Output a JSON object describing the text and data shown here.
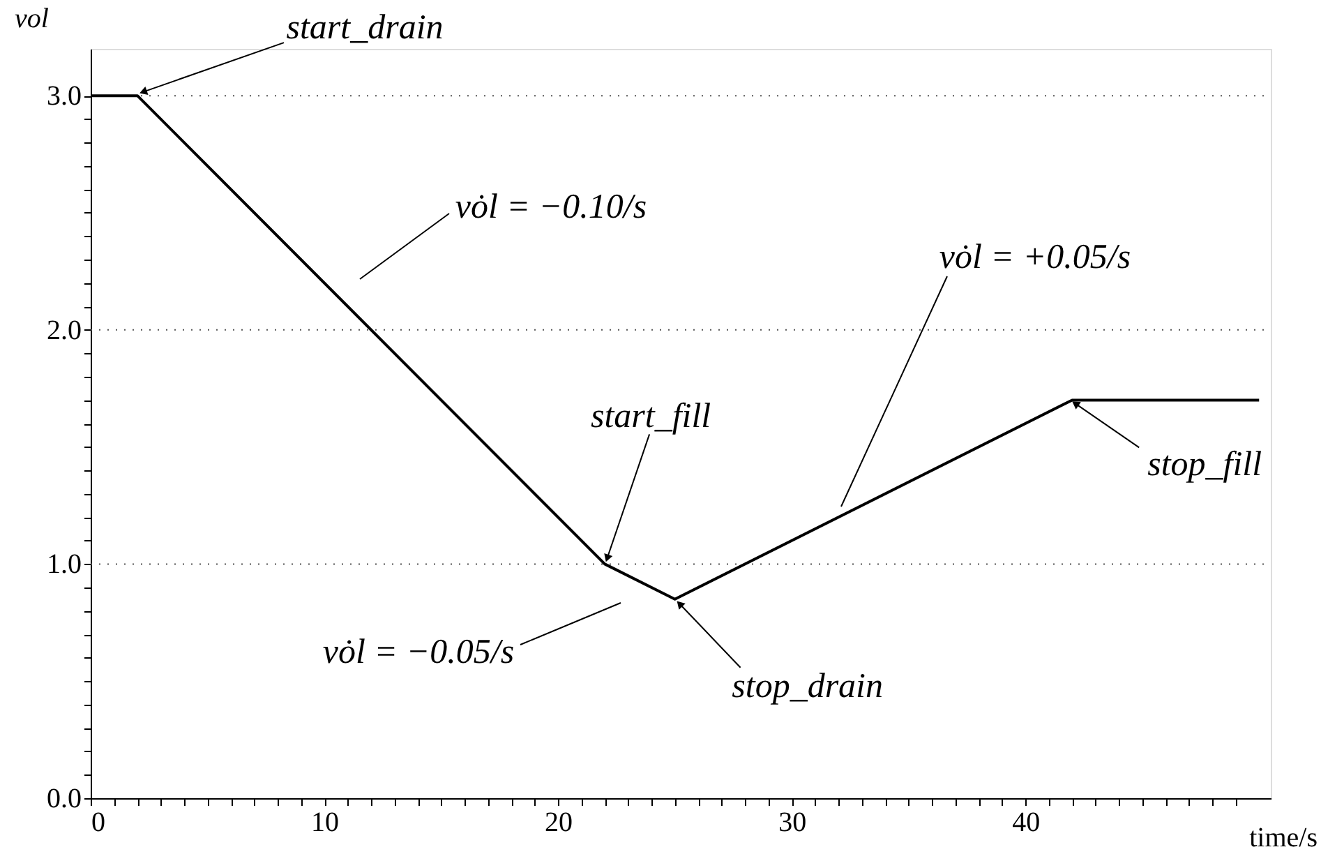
{
  "chart_data": {
    "type": "line",
    "xlabel": "time/s",
    "ylabel": "vol",
    "x": [
      0,
      2,
      22,
      25,
      42,
      50
    ],
    "series": [
      {
        "color": "#000000",
        "values": [
          3.0,
          3.0,
          1.0,
          0.85,
          1.7,
          1.7
        ]
      }
    ],
    "xlim": [
      0,
      50.5
    ],
    "ylim": [
      0,
      3.2
    ],
    "xticks": [
      0,
      {
        "value": 1,
        "label": null
      },
      {
        "value": 2,
        "label": null
      },
      {
        "value": 3,
        "label": null
      },
      {
        "value": 4,
        "label": null
      },
      {
        "value": 5,
        "label": null
      },
      {
        "value": 6,
        "label": null
      },
      {
        "value": 7,
        "label": null
      },
      {
        "value": 8,
        "label": null
      },
      {
        "value": 9,
        "label": null
      },
      10,
      {
        "value": 11,
        "label": null
      },
      {
        "value": 12,
        "label": null
      },
      {
        "value": 13,
        "label": null
      },
      {
        "value": 14,
        "label": null
      },
      {
        "value": 15,
        "label": null
      },
      {
        "value": 16,
        "label": null
      },
      {
        "value": 17,
        "label": null
      },
      {
        "value": 18,
        "label": null
      },
      {
        "value": 19,
        "label": null
      },
      20,
      {
        "value": 21,
        "label": null
      },
      {
        "value": 22,
        "label": null
      },
      {
        "value": 23,
        "label": null
      },
      {
        "value": 24,
        "label": null
      },
      {
        "value": 25,
        "label": null
      },
      {
        "value": 26,
        "label": null
      },
      {
        "value": 27,
        "label": null
      },
      {
        "value": 28,
        "label": null
      },
      {
        "value": 29,
        "label": null
      },
      30,
      {
        "value": 31,
        "label": null
      },
      {
        "value": 32,
        "label": null
      },
      {
        "value": 33,
        "label": null
      },
      {
        "value": 34,
        "label": null
      },
      {
        "value": 35,
        "label": null
      },
      {
        "value": 36,
        "label": null
      },
      {
        "value": 37,
        "label": null
      },
      {
        "value": 38,
        "label": null
      },
      {
        "value": 39,
        "label": null
      },
      40,
      {
        "value": 41,
        "label": null
      },
      {
        "value": 42,
        "label": null
      },
      {
        "value": 43,
        "label": null
      },
      {
        "value": 44,
        "label": null
      },
      {
        "value": 45,
        "label": null
      },
      {
        "value": 46,
        "label": null
      },
      {
        "value": 47,
        "label": null
      },
      {
        "value": 48,
        "label": null
      },
      {
        "value": 49,
        "label": null
      }
    ],
    "yticks": [
      {
        "value": 0,
        "label": "0.0"
      },
      {
        "value": 0.1,
        "label": null
      },
      {
        "value": 0.2,
        "label": null
      },
      {
        "value": 0.3,
        "label": null
      },
      {
        "value": 0.4,
        "label": null
      },
      {
        "value": 0.5,
        "label": null
      },
      {
        "value": 0.6,
        "label": null
      },
      {
        "value": 0.7,
        "label": null
      },
      {
        "value": 0.8,
        "label": null
      },
      {
        "value": 0.9,
        "label": null
      },
      {
        "value": 1,
        "label": "1.0"
      },
      {
        "value": 1.1,
        "label": null
      },
      {
        "value": 1.2,
        "label": null
      },
      {
        "value": 1.3,
        "label": null
      },
      {
        "value": 1.4,
        "label": null
      },
      {
        "value": 1.5,
        "label": null
      },
      {
        "value": 1.6,
        "label": null
      },
      {
        "value": 1.7,
        "label": null
      },
      {
        "value": 1.8,
        "label": null
      },
      {
        "value": 1.9,
        "label": null
      },
      {
        "value": 2,
        "label": "2.0"
      },
      {
        "value": 2.1,
        "label": null
      },
      {
        "value": 2.2,
        "label": null
      },
      {
        "value": 2.3,
        "label": null
      },
      {
        "value": 2.4,
        "label": null
      },
      {
        "value": 2.5,
        "label": null
      },
      {
        "value": 2.6,
        "label": null
      },
      {
        "value": 2.7,
        "label": null
      },
      {
        "value": 2.8,
        "label": null
      },
      {
        "value": 2.9,
        "label": null
      },
      {
        "value": 3,
        "label": "3.0"
      }
    ],
    "grid": "y",
    "marker": "none",
    "line_style": "solid",
    "annotations": [
      {
        "text": "start_drain",
        "x": 2,
        "y": 3.0
      },
      "vȯl = −0.10/s",
      {
        "text": "start_fill",
        "x": 22,
        "y": 1.0
      },
      "vȯl = −0.05/s",
      {
        "text": "stop_drain",
        "x": 25,
        "y": 0.85
      },
      "vȯl = +0.05/s",
      {
        "text": "stop_fill",
        "x": 42,
        "y": 1.7
      }
    ]
  }
}
